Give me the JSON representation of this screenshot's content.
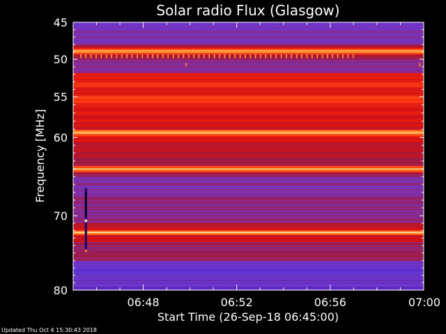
{
  "chart_data": {
    "type": "heatmap",
    "title": "Solar radio Flux (Glasgow)",
    "xlabel": "Start Time (26-Sep-18 06:45:00)",
    "ylabel": "Frequency [MHz]",
    "x_ticks": [
      "06:48",
      "06:52",
      "06:56",
      "07:00"
    ],
    "x_tick_minutes": [
      3,
      7,
      11,
      15
    ],
    "xlim_minutes": [
      0,
      15
    ],
    "y_ticks": [
      45,
      50,
      55,
      60,
      70,
      80
    ],
    "y_tick_fractions": [
      0.0,
      0.138,
      0.278,
      0.43,
      0.722,
      1.0
    ],
    "ylim": [
      45,
      80
    ],
    "colormap": [
      "#1a0050",
      "#3b10a0",
      "#6a3ad8",
      "#8a2a90",
      "#a01a40",
      "#d81010",
      "#ff3010",
      "#ff9030",
      "#fff0a0",
      "#ffffff"
    ],
    "bright_bands_mhz": [
      48.9,
      59.4,
      64.0,
      72.2
    ]
  },
  "footer": "Updated Thu Oct  4 15:30:43 2018"
}
